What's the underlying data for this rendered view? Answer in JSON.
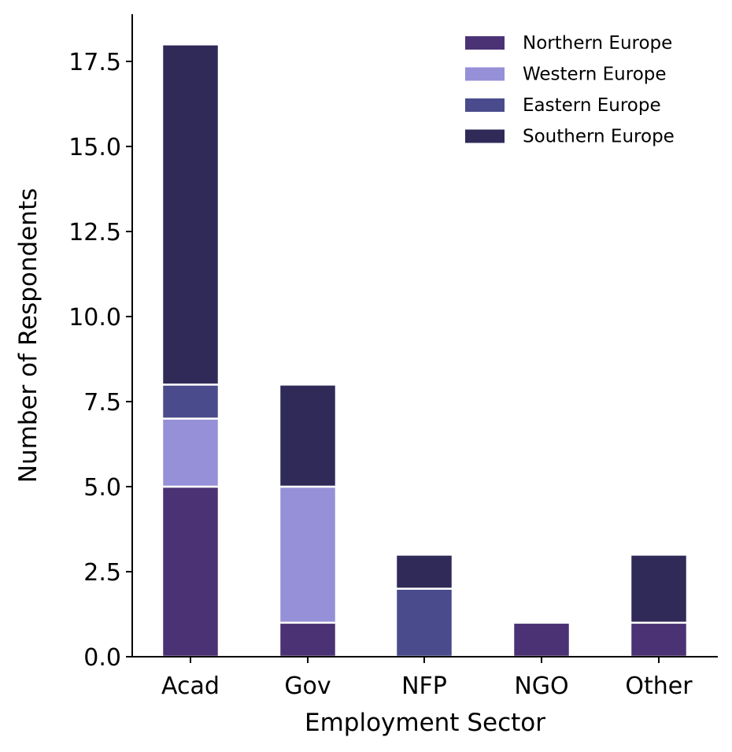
{
  "chart_data": {
    "type": "bar",
    "stacked": true,
    "categories": [
      "Acad",
      "Gov",
      "NFP",
      "NGO",
      "Other"
    ],
    "series": [
      {
        "name": "Northern Europe",
        "color": "#4b3274",
        "values": [
          5,
          1,
          0,
          1,
          1
        ]
      },
      {
        "name": "Western Europe",
        "color": "#9590d7",
        "values": [
          2,
          4,
          0,
          0,
          0
        ]
      },
      {
        "name": "Eastern Europe",
        "color": "#4a4b8c",
        "values": [
          1,
          0,
          2,
          0,
          0
        ]
      },
      {
        "name": "Southern Europe",
        "color": "#302a59",
        "values": [
          10,
          3,
          1,
          0,
          2
        ]
      }
    ],
    "xlabel": "Employment Sector",
    "ylabel": "Number of Respondents",
    "ylim": [
      0,
      18.9
    ],
    "yticks": [
      "0.0",
      "2.5",
      "5.0",
      "7.5",
      "10.0",
      "12.5",
      "15.0",
      "17.5"
    ],
    "legend_position": "top-right",
    "grid": false
  }
}
